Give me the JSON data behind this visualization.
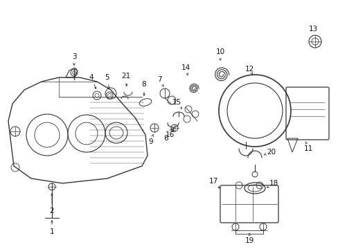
{
  "background_color": "#ffffff",
  "line_color": "#333333",
  "text_color": "#111111",
  "figsize": [
    4.89,
    3.6
  ],
  "dpi": 100
}
